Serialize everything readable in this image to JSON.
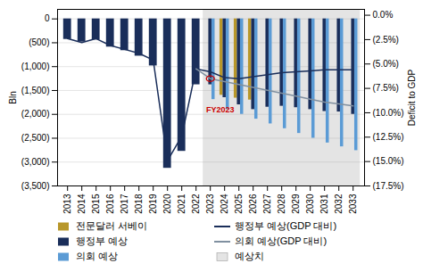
{
  "chart_data": {
    "type": "bar",
    "ylabel": "Bln",
    "y2label": "Deficit to GDP",
    "xlim": [
      2012.3,
      2033.8
    ],
    "xticks": [
      2013,
      2014,
      2015,
      2016,
      2017,
      2018,
      2019,
      2020,
      2021,
      2022,
      2023,
      2024,
      2025,
      2026,
      2027,
      2028,
      2029,
      2030,
      2031,
      2032,
      2033
    ],
    "ylim": [
      -3500,
      200
    ],
    "yticks": [
      0,
      {
        "value": -500,
        "label": "(500)"
      },
      {
        "value": -1000,
        "label": "(1,000)"
      },
      {
        "value": -1500,
        "label": "(1,500)"
      },
      {
        "value": -2000,
        "label": "(2,000)"
      },
      {
        "value": -2500,
        "label": "(2,500)"
      },
      {
        "value": -3000,
        "label": "(3,000)"
      },
      {
        "value": -3500,
        "label": "(3,500)"
      }
    ],
    "y2lim": [
      -17.5,
      0.6
    ],
    "y2ticks": [
      {
        "value": 0.0,
        "label": "0.0%"
      },
      {
        "value": -2.5,
        "label": "(2.5%)"
      },
      {
        "value": -5.0,
        "label": "(5.0%)"
      },
      {
        "value": -7.5,
        "label": "(7.5%)"
      },
      {
        "value": -10.0,
        "label": "(10.0%)"
      },
      {
        "value": -12.5,
        "label": "(12.5%)"
      },
      {
        "value": -15.0,
        "label": "(15.0%)"
      },
      {
        "value": -17.5,
        "label": "(17.5%)"
      }
    ],
    "grid": true,
    "legend": "bottom",
    "series": [
      {
        "name": "전문달러 서베이",
        "type": "bar",
        "color": "#b8972a",
        "x": [
          2024,
          2025,
          2026
        ],
        "values": [
          -1600,
          -1660,
          -1700
        ]
      },
      {
        "name": "행정부 예상",
        "type": "bar",
        "color": "#1a2e5a",
        "x": [
          2013,
          2014,
          2015,
          2016,
          2017,
          2018,
          2019,
          2020,
          2021,
          2022,
          2023,
          2024,
          2025,
          2026,
          2027,
          2028,
          2029,
          2030,
          2031,
          2032,
          2033
        ],
        "values": [
          -430,
          -485,
          -440,
          -590,
          -665,
          -780,
          -985,
          -3130,
          -2775,
          -1380,
          -1380,
          -1650,
          -1800,
          -1900,
          -1850,
          -1830,
          -1860,
          -1900,
          -1940,
          -1950,
          -2000
        ]
      },
      {
        "name": "의회 예상",
        "type": "bar",
        "color": "#5b9bd5",
        "x": [
          2023,
          2024,
          2025,
          2026,
          2027,
          2028,
          2029,
          2030,
          2031,
          2032,
          2033
        ],
        "values": [
          -1690,
          -1900,
          -2000,
          -2100,
          -2200,
          -2300,
          -2400,
          -2500,
          -2600,
          -2680,
          -2760
        ]
      },
      {
        "name": "행정부 예상(GDP 대비)",
        "type": "line",
        "axis": "y2",
        "color": "#1a2e5a",
        "x": [
          2013,
          2014,
          2015,
          2016,
          2017,
          2018,
          2019,
          2020,
          2021,
          2022,
          2022,
          2023,
          2024,
          2025,
          2026,
          2027,
          2028,
          2029,
          2030,
          2031,
          2032,
          2033
        ],
        "values": [
          -2.4,
          -2.8,
          -2.4,
          -3.1,
          -3.5,
          -3.9,
          -4.6,
          -14.9,
          -12.4,
          -5.5,
          -5.5,
          -5.8,
          -6.4,
          -6.5,
          -6.3,
          -6.1,
          -5.9,
          -5.8,
          -5.7,
          -5.6,
          -5.6,
          -5.6
        ]
      },
      {
        "name": "의회 예상(GDP 대비)",
        "type": "line",
        "axis": "y2",
        "color": "#8090a0",
        "x": [
          2022,
          2023,
          2024,
          2025,
          2026,
          2027,
          2028,
          2029,
          2030,
          2031,
          2032,
          2033
        ],
        "values": [
          -5.5,
          -6.5,
          -6.8,
          -7.1,
          -7.4,
          -7.7,
          -8.0,
          -8.3,
          -8.6,
          -8.9,
          -9.1,
          -9.3
        ]
      },
      {
        "name": "예상치",
        "type": "span",
        "color": "#e4e4e4",
        "x": [
          2023,
          2033
        ]
      }
    ],
    "annotations": [
      {
        "text": "FY2023",
        "x": 2022.7,
        "y": -1900,
        "color": "#cc0000"
      },
      {
        "type": "circle",
        "x": 2023,
        "y": -6.5,
        "radius": 0.28,
        "axis": "y2",
        "color": "#cc0000"
      }
    ]
  }
}
